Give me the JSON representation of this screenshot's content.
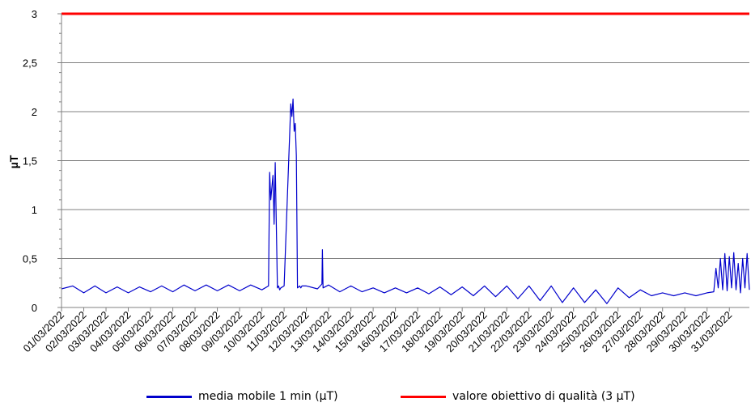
{
  "chart_data": {
    "type": "line",
    "ylabel": "µT",
    "ylim": [
      0,
      3
    ],
    "yticks": [
      0,
      0.5,
      1,
      1.5,
      2,
      2.5,
      3
    ],
    "ytick_labels": [
      "0",
      "0,5",
      "1",
      "1,5",
      "2",
      "2,5",
      "3"
    ],
    "categories": [
      "01/03/2022",
      "02/03/2022",
      "03/03/2022",
      "04/03/2022",
      "05/03/2022",
      "06/03/2022",
      "07/03/2022",
      "08/03/2022",
      "09/03/2022",
      "10/03/2022",
      "11/03/2022",
      "12/03/2022",
      "13/03/2022",
      "14/03/2022",
      "15/03/2022",
      "16/03/2022",
      "17/03/2022",
      "18/03/2022",
      "19/03/2022",
      "20/03/2022",
      "21/03/2022",
      "22/03/2022",
      "23/03/2022",
      "24/03/2022",
      "25/03/2022",
      "26/03/2022",
      "27/03/2022",
      "28/03/2022",
      "29/03/2022",
      "30/03/2022",
      "31/03/2022"
    ],
    "grid": true,
    "legend_position": "bottom",
    "series": [
      {
        "name": "media mobile 1 min (µT)",
        "color": "#0000cc",
        "x": [
          0,
          0.5,
          1,
          1.5,
          2,
          2.5,
          3,
          3.5,
          4,
          4.5,
          5,
          5.5,
          6,
          6.5,
          7,
          7.5,
          8,
          8.5,
          9,
          9.3,
          9.35,
          9.4,
          9.5,
          9.55,
          9.6,
          9.7,
          9.75,
          9.8,
          9.85,
          10,
          10.3,
          10.35,
          10.4,
          10.45,
          10.5,
          10.55,
          10.6,
          10.7,
          10.75,
          10.8,
          11,
          11.5,
          11.7,
          11.72,
          11.75,
          12,
          12.5,
          13,
          13.5,
          14,
          14.5,
          15,
          15.5,
          16,
          16.5,
          17,
          17.5,
          18,
          18.5,
          19,
          19.5,
          20,
          20.5,
          21,
          21.5,
          22,
          22.5,
          23,
          23.5,
          24,
          24.5,
          25,
          25.5,
          26,
          26.5,
          27,
          27.5,
          28,
          28.5,
          29,
          29.3,
          29.4,
          29.5,
          29.6,
          29.7,
          29.8,
          29.9,
          30,
          30.1,
          30.2,
          30.3,
          30.4,
          30.5,
          30.6,
          30.7,
          30.8,
          30.9
        ],
        "y": [
          0.19,
          0.22,
          0.15,
          0.22,
          0.15,
          0.21,
          0.15,
          0.21,
          0.16,
          0.22,
          0.16,
          0.23,
          0.17,
          0.23,
          0.17,
          0.23,
          0.17,
          0.23,
          0.18,
          0.22,
          1.38,
          1.1,
          1.35,
          0.85,
          1.48,
          0.2,
          0.22,
          0.18,
          0.2,
          0.22,
          2.08,
          1.95,
          2.13,
          1.8,
          1.88,
          1.55,
          0.2,
          0.22,
          0.2,
          0.22,
          0.22,
          0.19,
          0.24,
          0.59,
          0.2,
          0.23,
          0.16,
          0.22,
          0.16,
          0.2,
          0.15,
          0.2,
          0.15,
          0.2,
          0.14,
          0.21,
          0.13,
          0.21,
          0.12,
          0.22,
          0.11,
          0.22,
          0.09,
          0.22,
          0.07,
          0.22,
          0.05,
          0.2,
          0.05,
          0.18,
          0.04,
          0.2,
          0.1,
          0.18,
          0.12,
          0.15,
          0.12,
          0.15,
          0.12,
          0.15,
          0.16,
          0.4,
          0.2,
          0.5,
          0.18,
          0.55,
          0.17,
          0.52,
          0.2,
          0.56,
          0.18,
          0.45,
          0.15,
          0.5,
          0.2,
          0.55,
          0.18
        ]
      },
      {
        "name": "valore obiettivo di qualità (3 µT)",
        "color": "#ff0000",
        "x": [
          0,
          30.9
        ],
        "y": [
          3,
          3
        ]
      }
    ]
  }
}
